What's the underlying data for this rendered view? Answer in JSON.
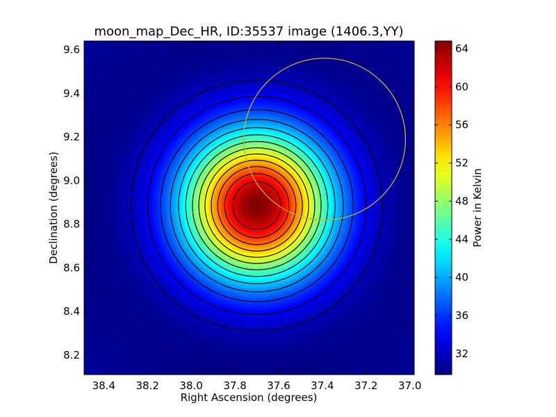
{
  "chart_data": {
    "type": "heatmap",
    "title": "moon_map_Dec_HR, ID:35537 image (1406.3,YY)",
    "xlabel": "Right Ascension (degrees)",
    "ylabel": "Declination (degrees)",
    "colorbar_label": "Power in Kelvin",
    "colormap": "jet",
    "xlim": [
      38.49,
      36.98
    ],
    "ylim": [
      8.11,
      9.64
    ],
    "x_ticks": [
      38.4,
      38.2,
      38.0,
      37.8,
      37.6,
      37.4,
      37.2,
      37.0
    ],
    "x_tick_labels": [
      "38.4",
      "38.2",
      "38.0",
      "37.8",
      "37.6",
      "37.4",
      "37.2",
      "37.0"
    ],
    "y_ticks": [
      8.2,
      8.4,
      8.6,
      8.8,
      9.0,
      9.2,
      9.4,
      9.6
    ],
    "y_tick_labels": [
      "8.2",
      "8.4",
      "8.6",
      "8.8",
      "9.0",
      "9.2",
      "9.4",
      "9.6"
    ],
    "color_range": [
      29.8,
      64.8
    ],
    "colorbar_ticks": [
      32,
      36,
      40,
      44,
      48,
      52,
      56,
      60,
      64
    ],
    "colorbar_tick_labels": [
      "32",
      "36",
      "40",
      "44",
      "48",
      "52",
      "56",
      "60",
      "64"
    ],
    "peak": {
      "ra": 37.7,
      "dec": 8.885,
      "value": 64.8
    },
    "background_level": 29.8,
    "contour_levels": [
      31.8,
      33.8,
      36.3,
      38.8,
      41.3,
      43.8,
      46.3,
      48.8,
      51.3,
      53.8,
      56.3,
      58.8,
      61.3
    ],
    "circle": {
      "center_ra": 37.39,
      "center_dec": 9.19,
      "radius_deg": 0.37,
      "color": "#c8b432"
    }
  }
}
